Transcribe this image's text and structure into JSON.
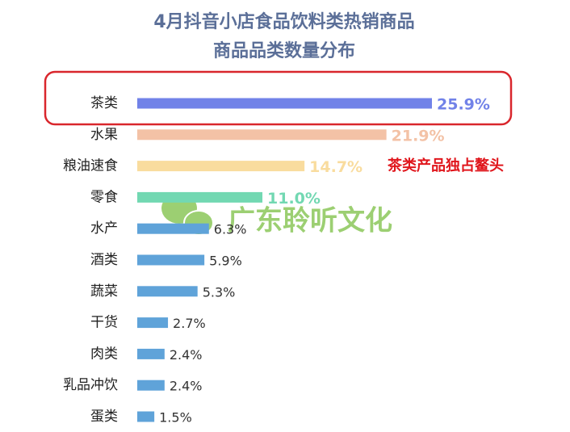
{
  "chart_data": {
    "type": "bar",
    "orientation": "horizontal",
    "title": [
      "4月抖音小店食品饮料类热销商品",
      "商品品类数量分布"
    ],
    "categories": [
      "茶类",
      "水果",
      "粮油速食",
      "零食",
      "水产",
      "酒类",
      "蔬菜",
      "干货",
      "肉类",
      "乳品冲饮",
      "蛋类"
    ],
    "values": [
      25.9,
      21.9,
      14.7,
      11.0,
      6.3,
      5.9,
      5.3,
      2.7,
      2.4,
      2.4,
      1.5
    ],
    "value_labels": [
      "25.9%",
      "21.9%",
      "14.7%",
      "11.0%",
      "6.3%",
      "5.9%",
      "5.3%",
      "2.7%",
      "2.4%",
      "2.4%",
      "1.5%"
    ],
    "colors": [
      "#7182e8",
      "#f3c2a6",
      "#f9dc9e",
      "#72d8b2",
      "#5fa3d9",
      "#5fa3d9",
      "#5fa3d9",
      "#5fa3d9",
      "#5fa3d9",
      "#5fa3d9",
      "#5fa3d9"
    ],
    "label_colors": [
      "#7182e8",
      "#f3c2a6",
      "#f9dc9e",
      "#72d8b2",
      "#333333",
      "#333333",
      "#333333",
      "#333333",
      "#333333",
      "#333333",
      "#333333"
    ],
    "annotation": "茶类产品独占鳌头",
    "watermark": "广东聆听文化"
  }
}
